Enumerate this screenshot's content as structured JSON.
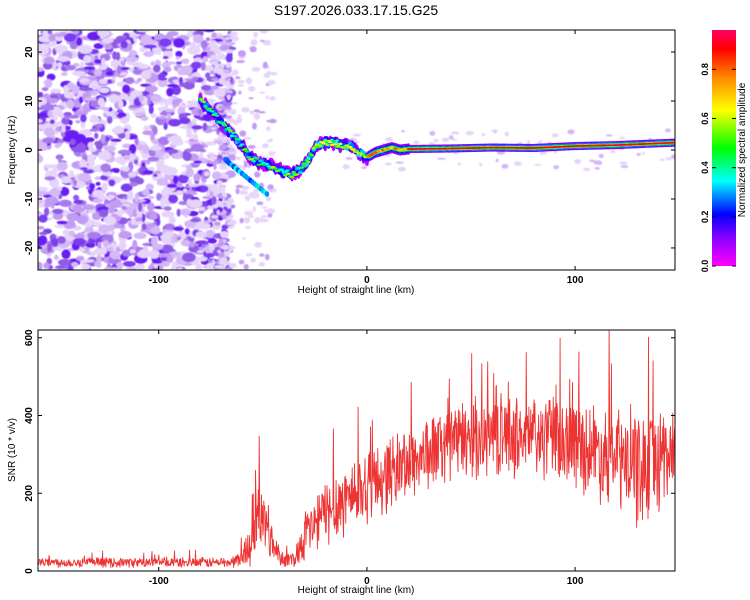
{
  "chart_data": [
    {
      "type": "heatmap",
      "title": "S197.2026.033.17.15.G25",
      "xlabel": "Height of straight line (km)",
      "ylabel": "Frequency (Hz)",
      "xlim": [
        -158,
        148
      ],
      "ylim": [
        -24.5,
        24.5
      ],
      "xticks": [
        -100,
        0,
        100
      ],
      "xtick_labels": [
        "-100",
        "0",
        "100"
      ],
      "yticks": [
        -20,
        -10,
        0,
        10,
        20
      ],
      "ytick_labels": [
        "-20",
        "-10",
        "0",
        "10",
        "20"
      ],
      "ridge": {
        "x": [
          -80,
          -76,
          -72,
          -68,
          -64,
          -60,
          -56,
          -52,
          -48,
          -44,
          -40,
          -36,
          -32,
          -28,
          -24,
          -20,
          -16,
          -12,
          -8,
          -4,
          0,
          4,
          8,
          12,
          16,
          20,
          40,
          60,
          80,
          100,
          120,
          148
        ],
        "y": [
          10,
          8.5,
          6.5,
          4.5,
          3,
          1,
          -1.5,
          -2.5,
          -3,
          -3.5,
          -4.5,
          -5,
          -4,
          -2,
          1,
          1.5,
          1.5,
          0.8,
          1,
          -0.5,
          -1.5,
          -0.5,
          0,
          0.5,
          0,
          0.2,
          0.3,
          0.5,
          0.4,
          0.8,
          1,
          1.5
        ]
      },
      "colorbar": {
        "label": "Normalized spectral amplitude",
        "ticks": [
          0.0,
          0.2,
          0.4,
          0.6,
          0.8
        ],
        "tick_labels": [
          "0.0",
          "0.2",
          "0.4",
          "0.6",
          "0.8"
        ],
        "range": [
          0,
          0.96
        ],
        "colormap": [
          "#ff00ff",
          "#8800ff",
          "#0000ff",
          "#00ffff",
          "#00ff00",
          "#ffff00",
          "#ff8800",
          "#ff0000",
          "#ff0066"
        ]
      }
    },
    {
      "type": "line",
      "xlabel": "Height of straight line (km)",
      "ylabel": "SNR (10 * v/v)",
      "xlim": [
        -158,
        148
      ],
      "ylim": [
        0,
        620
      ],
      "xticks": [
        -100,
        0,
        100
      ],
      "xtick_labels": [
        "-100",
        "0",
        "100"
      ],
      "yticks": [
        0,
        200,
        400,
        600
      ],
      "ytick_labels": [
        "0",
        "200",
        "400",
        "600"
      ],
      "color": "#ee3333",
      "envelope": {
        "x": [
          -158,
          -100,
          -65,
          -60,
          -55,
          -52,
          -48,
          -44,
          -40,
          -35,
          -30,
          -20,
          -10,
          0,
          20,
          40,
          60,
          80,
          100,
          120,
          130,
          140,
          148
        ],
        "mean": [
          22,
          22,
          22,
          35,
          80,
          150,
          110,
          55,
          30,
          30,
          90,
          150,
          190,
          220,
          280,
          330,
          350,
          345,
          330,
          290,
          260,
          290,
          310
        ],
        "spread": [
          14,
          14,
          15,
          30,
          70,
          110,
          80,
          40,
          20,
          25,
          70,
          100,
          110,
          110,
          110,
          110,
          120,
          120,
          130,
          150,
          170,
          160,
          150
        ]
      }
    }
  ]
}
